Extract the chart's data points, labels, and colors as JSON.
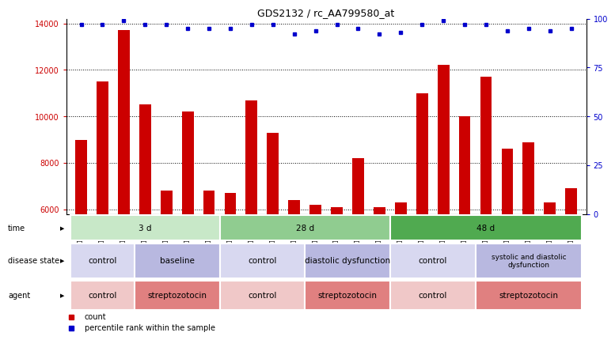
{
  "title": "GDS2132 / rc_AA799580_at",
  "samples": [
    "GSM107412",
    "GSM107413",
    "GSM107414",
    "GSM107415",
    "GSM107416",
    "GSM107417",
    "GSM107418",
    "GSM107419",
    "GSM107420",
    "GSM107421",
    "GSM107422",
    "GSM107423",
    "GSM107424",
    "GSM107425",
    "GSM107426",
    "GSM107427",
    "GSM107428",
    "GSM107429",
    "GSM107430",
    "GSM107431",
    "GSM107432",
    "GSM107433",
    "GSM107434",
    "GSM107435"
  ],
  "counts": [
    9000,
    11500,
    13700,
    10500,
    6800,
    10200,
    6800,
    6700,
    10700,
    9300,
    6400,
    6200,
    6100,
    8200,
    6100,
    6300,
    11000,
    12200,
    10000,
    11700,
    8600,
    8900,
    6300,
    6900
  ],
  "percentile_ranks": [
    97,
    97,
    99,
    97,
    97,
    95,
    95,
    95,
    97,
    97,
    92,
    94,
    97,
    95,
    92,
    93,
    97,
    99,
    97,
    97,
    94,
    95,
    94,
    95
  ],
  "ylim_left": [
    5800,
    14200
  ],
  "ylim_right": [
    0,
    100
  ],
  "yticks_left": [
    6000,
    8000,
    10000,
    12000,
    14000
  ],
  "yticks_right": [
    0,
    25,
    50,
    75,
    100
  ],
  "bar_color": "#cc0000",
  "dot_color": "#0000cc",
  "time_groups": [
    {
      "label": "3 d",
      "start": 0,
      "end": 7,
      "color": "#c8e8c8"
    },
    {
      "label": "28 d",
      "start": 7,
      "end": 15,
      "color": "#90cc90"
    },
    {
      "label": "48 d",
      "start": 15,
      "end": 24,
      "color": "#50aa50"
    }
  ],
  "disease_groups": [
    {
      "label": "control",
      "start": 0,
      "end": 3,
      "color": "#d8d8f0"
    },
    {
      "label": "baseline",
      "start": 3,
      "end": 7,
      "color": "#b8b8e0"
    },
    {
      "label": "control",
      "start": 7,
      "end": 11,
      "color": "#d8d8f0"
    },
    {
      "label": "diastolic dysfunction",
      "start": 11,
      "end": 15,
      "color": "#b8b8e0"
    },
    {
      "label": "control",
      "start": 15,
      "end": 19,
      "color": "#d8d8f0"
    },
    {
      "label": "systolic and diastolic\ndysfunction",
      "start": 19,
      "end": 24,
      "color": "#b8b8e0"
    }
  ],
  "agent_groups": [
    {
      "label": "control",
      "start": 0,
      "end": 3,
      "color": "#f0c8c8"
    },
    {
      "label": "streptozotocin",
      "start": 3,
      "end": 7,
      "color": "#e08080"
    },
    {
      "label": "control",
      "start": 7,
      "end": 11,
      "color": "#f0c8c8"
    },
    {
      "label": "streptozotocin",
      "start": 11,
      "end": 15,
      "color": "#e08080"
    },
    {
      "label": "control",
      "start": 15,
      "end": 19,
      "color": "#f0c8c8"
    },
    {
      "label": "streptozotocin",
      "start": 19,
      "end": 24,
      "color": "#e08080"
    }
  ],
  "legend_count_label": "count",
  "legend_pct_label": "percentile rank within the sample",
  "legend_count_color": "#cc0000",
  "legend_pct_color": "#0000cc"
}
